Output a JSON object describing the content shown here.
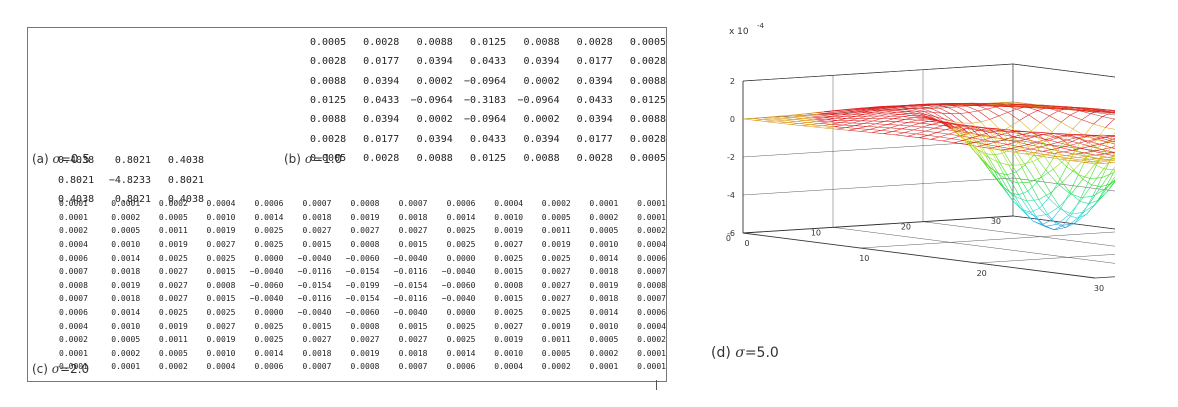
{
  "captions": {
    "a": {
      "prefix": "(a)",
      "sigma": "σ",
      "value": "=0.5"
    },
    "b": {
      "prefix": "(b)",
      "sigma": "σ",
      "value": "=1.0"
    },
    "c": {
      "prefix": "(c)",
      "sigma": "σ",
      "value": "=2.0"
    },
    "d": {
      "prefix": "(d)",
      "sigma": "σ",
      "value": "=5.0"
    }
  },
  "matrix_a": [
    [
      "0.4038",
      "0.8021",
      "0.4038"
    ],
    [
      "0.8021",
      "−4.8233",
      "0.8021"
    ],
    [
      "0.4038",
      "0.8021",
      "0.4038"
    ]
  ],
  "matrix_b": [
    [
      "0.0005",
      "0.0028",
      "0.0088",
      "0.0125",
      "0.0088",
      "0.0028",
      "0.0005"
    ],
    [
      "0.0028",
      "0.0177",
      "0.0394",
      "0.0433",
      "0.0394",
      "0.0177",
      "0.0028"
    ],
    [
      "0.0088",
      "0.0394",
      "0.0002",
      "−0.0964",
      "0.0002",
      "0.0394",
      "0.0088"
    ],
    [
      "0.0125",
      "0.0433",
      "−0.0964",
      "−0.3183",
      "−0.0964",
      "0.0433",
      "0.0125"
    ],
    [
      "0.0088",
      "0.0394",
      "0.0002",
      "−0.0964",
      "0.0002",
      "0.0394",
      "0.0088"
    ],
    [
      "0.0028",
      "0.0177",
      "0.0394",
      "0.0433",
      "0.0394",
      "0.0177",
      "0.0028"
    ],
    [
      "0.0005",
      "0.0028",
      "0.0088",
      "0.0125",
      "0.0088",
      "0.0028",
      "0.0005"
    ]
  ],
  "matrix_c": [
    [
      "0.0001",
      "0.0001",
      "0.0002",
      "0.0004",
      "0.0006",
      "0.0007",
      "0.0008",
      "0.0007",
      "0.0006",
      "0.0004",
      "0.0002",
      "0.0001",
      "0.0001"
    ],
    [
      "0.0001",
      "0.0002",
      "0.0005",
      "0.0010",
      "0.0014",
      "0.0018",
      "0.0019",
      "0.0018",
      "0.0014",
      "0.0010",
      "0.0005",
      "0.0002",
      "0.0001"
    ],
    [
      "0.0002",
      "0.0005",
      "0.0011",
      "0.0019",
      "0.0025",
      "0.0027",
      "0.0027",
      "0.0027",
      "0.0025",
      "0.0019",
      "0.0011",
      "0.0005",
      "0.0002"
    ],
    [
      "0.0004",
      "0.0010",
      "0.0019",
      "0.0027",
      "0.0025",
      "0.0015",
      "0.0008",
      "0.0015",
      "0.0025",
      "0.0027",
      "0.0019",
      "0.0010",
      "0.0004"
    ],
    [
      "0.0006",
      "0.0014",
      "0.0025",
      "0.0025",
      "0.0000",
      "−0.0040",
      "−0.0060",
      "−0.0040",
      "0.0000",
      "0.0025",
      "0.0025",
      "0.0014",
      "0.0006"
    ],
    [
      "0.0007",
      "0.0018",
      "0.0027",
      "0.0015",
      "−0.0040",
      "−0.0116",
      "−0.0154",
      "−0.0116",
      "−0.0040",
      "0.0015",
      "0.0027",
      "0.0018",
      "0.0007"
    ],
    [
      "0.0008",
      "0.0019",
      "0.0027",
      "0.0008",
      "−0.0060",
      "−0.0154",
      "−0.0199",
      "−0.0154",
      "−0.0060",
      "0.0008",
      "0.0027",
      "0.0019",
      "0.0008"
    ],
    [
      "0.0007",
      "0.0018",
      "0.0027",
      "0.0015",
      "−0.0040",
      "−0.0116",
      "−0.0154",
      "−0.0116",
      "−0.0040",
      "0.0015",
      "0.0027",
      "0.0018",
      "0.0007"
    ],
    [
      "0.0006",
      "0.0014",
      "0.0025",
      "0.0025",
      "0.0000",
      "−0.0040",
      "−0.0060",
      "−0.0040",
      "0.0000",
      "0.0025",
      "0.0025",
      "0.0014",
      "0.0006"
    ],
    [
      "0.0004",
      "0.0010",
      "0.0019",
      "0.0027",
      "0.0025",
      "0.0015",
      "0.0008",
      "0.0015",
      "0.0025",
      "0.0027",
      "0.0019",
      "0.0010",
      "0.0004"
    ],
    [
      "0.0002",
      "0.0005",
      "0.0011",
      "0.0019",
      "0.0025",
      "0.0027",
      "0.0027",
      "0.0027",
      "0.0025",
      "0.0019",
      "0.0011",
      "0.0005",
      "0.0002"
    ],
    [
      "0.0001",
      "0.0002",
      "0.0005",
      "0.0010",
      "0.0014",
      "0.0018",
      "0.0019",
      "0.0018",
      "0.0014",
      "0.0010",
      "0.0005",
      "0.0002",
      "0.0001"
    ],
    [
      "0.0001",
      "0.0001",
      "0.0002",
      "0.0004",
      "0.0006",
      "0.0007",
      "0.0008",
      "0.0007",
      "0.0006",
      "0.0004",
      "0.0002",
      "0.0001",
      "0.0001"
    ]
  ],
  "surface_plot": {
    "scale_label": "x 10",
    "scale_exp": "-4",
    "z_ticks": [
      "2",
      "0",
      "-2",
      "-4",
      "-6"
    ],
    "y_ticks": [
      "30",
      "20",
      "10",
      "0"
    ],
    "x_ticks": [
      "0",
      "10",
      "20",
      "30"
    ],
    "sigma": 5.0,
    "zlim": [
      -6,
      2
    ],
    "grid_size": 31,
    "colors": {
      "mesh_top": "#dd2222",
      "mesh_low": "#2233cc",
      "axes": "#333333"
    }
  }
}
